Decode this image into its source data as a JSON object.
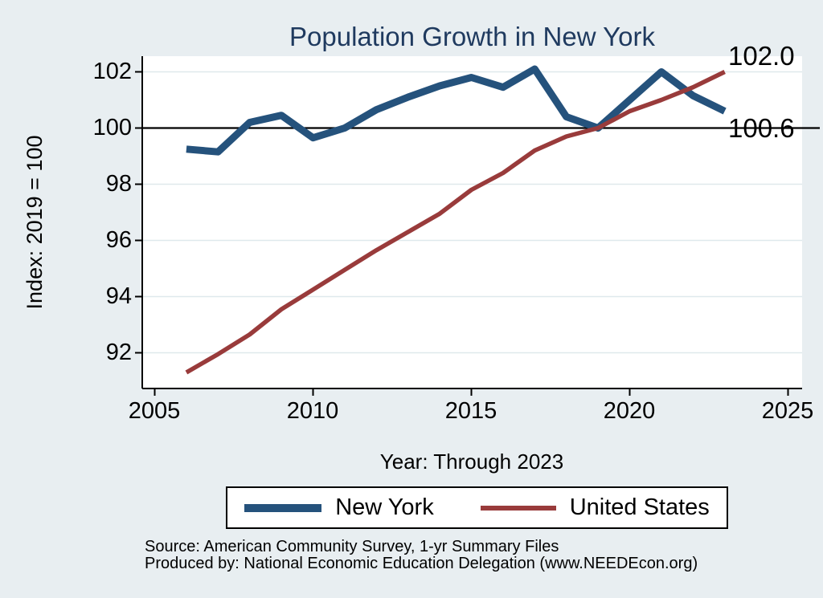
{
  "page": {
    "background_color": "#e8eef1"
  },
  "chart_data": {
    "type": "line",
    "title": "Population Growth in New York",
    "title_color": "#1f3a5f",
    "xlabel": "Year: Through 2023",
    "ylabel": "Index: 2019 = 100",
    "x": [
      2006,
      2007,
      2008,
      2009,
      2010,
      2011,
      2012,
      2013,
      2014,
      2015,
      2016,
      2017,
      2018,
      2019,
      2020,
      2021,
      2022,
      2023
    ],
    "series": [
      {
        "name": "New York",
        "color": "#25527c",
        "line_width": 9,
        "values": [
          99.25,
          99.15,
          100.2,
          100.45,
          99.65,
          100.0,
          100.65,
          101.1,
          101.5,
          101.8,
          101.45,
          102.1,
          100.4,
          100.0,
          101.0,
          102.0,
          101.15,
          100.6
        ]
      },
      {
        "name": "United States",
        "color": "#993b3b",
        "line_width": 5.5,
        "values": [
          91.3,
          91.95,
          92.65,
          93.55,
          94.25,
          94.95,
          95.65,
          96.3,
          96.95,
          97.8,
          98.4,
          99.2,
          99.7,
          100.0,
          100.6,
          101.0,
          101.45,
          102.0
        ]
      }
    ],
    "x_ticks": [
      2005,
      2010,
      2015,
      2020,
      2025
    ],
    "y_ticks": [
      92,
      94,
      96,
      98,
      100,
      102
    ],
    "xlim": [
      2004.6,
      2025.4
    ],
    "ylim": [
      90.7,
      102.6
    ],
    "grid": true,
    "reference_line_y": 100,
    "end_labels": {
      "top": "102.0",
      "bottom": "100.6"
    },
    "legend_position": "bottom",
    "plot_background": "#ffffff",
    "gridline_color": "#dfe9ec",
    "captions": [
      "Source: American Community Survey, 1-yr Summary Files",
      "Produced by: National Economic Education Delegation (www.NEEDEcon.org)"
    ]
  }
}
